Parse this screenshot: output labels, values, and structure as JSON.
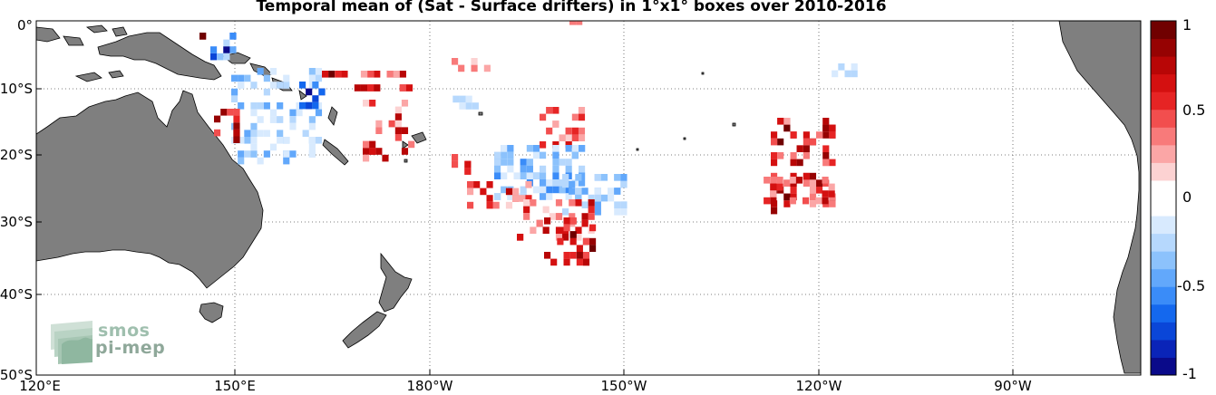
{
  "title": "Temporal mean of (Sat - Surface drifters) in 1°x1° boxes over 2010-2016",
  "y_axis_labels": [
    "0°",
    "10°S",
    "20°S",
    "30°S",
    "40°S",
    "50°S"
  ],
  "x_axis_labels": [
    "120°E",
    "150°E",
    "180°W",
    "150°W",
    "120°W",
    "90°W"
  ],
  "colorbar": {
    "labels": [
      "1",
      "0.5",
      "0",
      "-0.5",
      "-1"
    ],
    "range": [
      -1,
      1
    ]
  },
  "logo": {
    "line1": "smos",
    "line2": "pi-mep"
  },
  "colors": {
    "land": "#7f7f7f",
    "grid": "#555555"
  }
}
